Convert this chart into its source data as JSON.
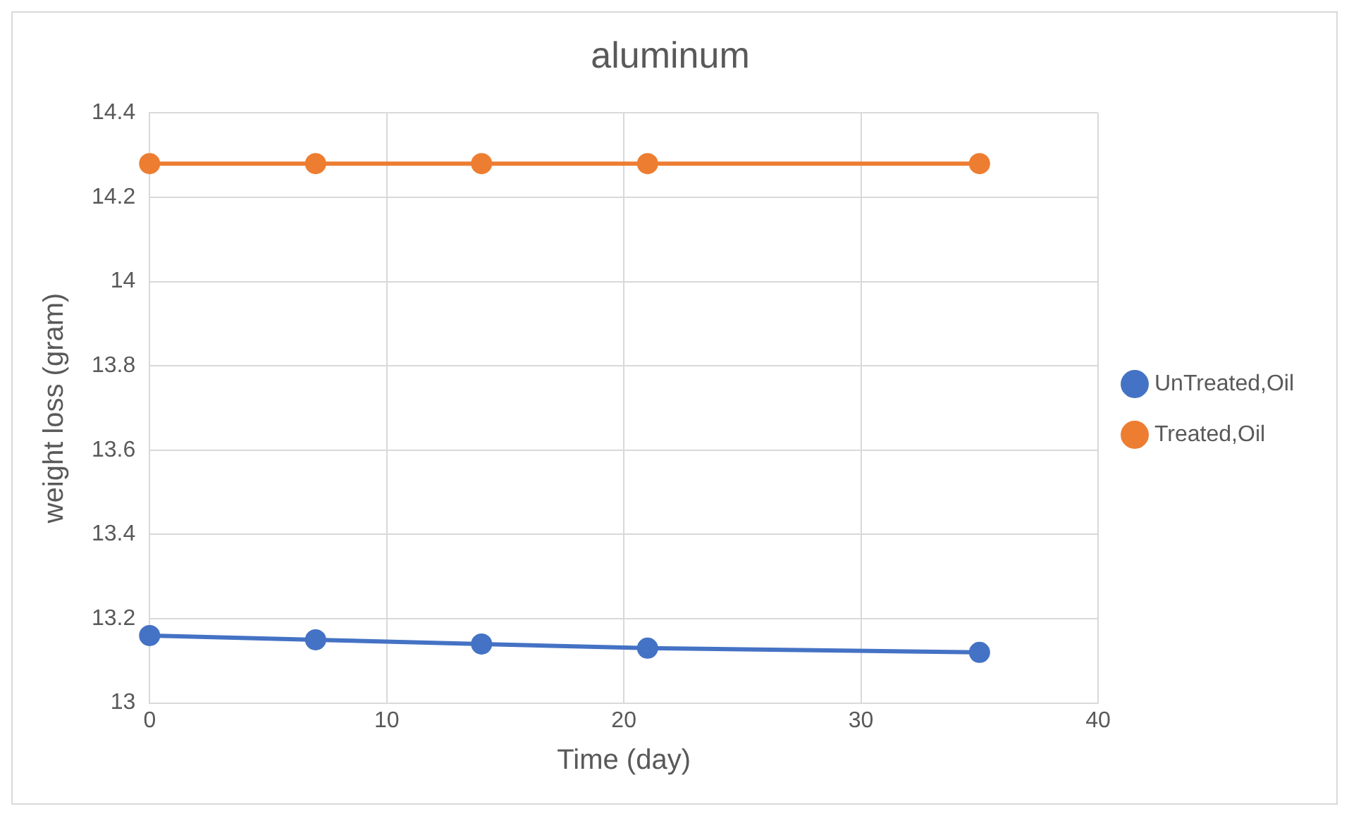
{
  "chart_data": {
    "type": "line",
    "title": "aluminum",
    "xlabel": "Time (day)",
    "ylabel": "weight loss (gram)",
    "x": [
      0,
      7,
      14,
      21,
      35
    ],
    "series": [
      {
        "name": "UnTreated,Oil",
        "color": "#4472c4",
        "values": [
          13.16,
          13.15,
          13.14,
          13.13,
          13.12
        ]
      },
      {
        "name": "Treated,Oil",
        "color": "#ed7d31",
        "values": [
          14.28,
          14.28,
          14.28,
          14.28,
          14.28
        ]
      }
    ],
    "xlim": [
      0,
      40
    ],
    "xticks": [
      0,
      10,
      20,
      30,
      40
    ],
    "ylim": [
      13,
      14.4
    ],
    "yticks": [
      13,
      13.2,
      13.4,
      13.6,
      13.8,
      14,
      14.2,
      14.4
    ],
    "grid": true,
    "legend": "right",
    "marker": "circle",
    "line_style": "solid"
  }
}
